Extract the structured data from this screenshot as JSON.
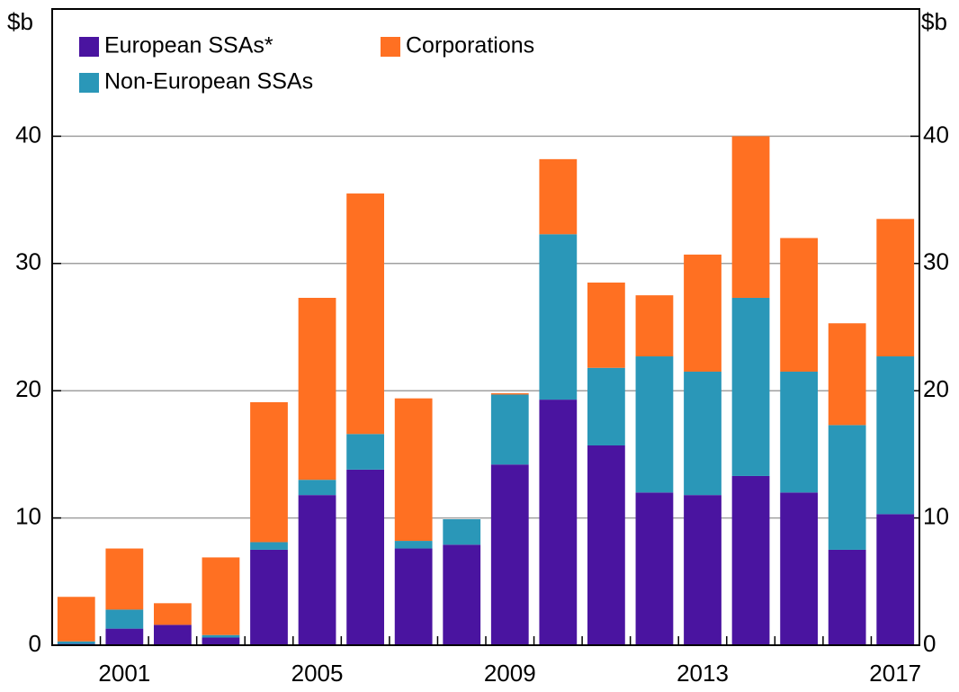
{
  "chart_data": {
    "type": "stacked_bar",
    "y_label": "$b",
    "y2_label": "$b",
    "categories": [
      null,
      "2001",
      null,
      null,
      null,
      "2005",
      null,
      null,
      null,
      "2009",
      null,
      null,
      null,
      "2013",
      null,
      null,
      null,
      "2017"
    ],
    "series": [
      {
        "name": "European SSAs*",
        "color": "#4a14a0",
        "values": [
          0.1,
          1.3,
          1.6,
          0.6,
          7.5,
          11.8,
          13.8,
          7.6,
          7.9,
          14.2,
          19.3,
          15.7,
          12.0,
          11.8,
          13.3,
          12.0,
          7.5,
          10.3
        ]
      },
      {
        "name": "Non-European SSAs",
        "color": "#2a97b8",
        "values": [
          0.2,
          1.5,
          0,
          0.2,
          0.6,
          1.2,
          2.8,
          0.6,
          2.0,
          5.5,
          13.0,
          6.1,
          10.7,
          9.7,
          14.0,
          9.5,
          9.8,
          12.4
        ]
      },
      {
        "name": "Corporations",
        "color": "#ff7022",
        "values": [
          3.5,
          4.8,
          1.7,
          6.1,
          11.0,
          14.3,
          18.9,
          11.2,
          0,
          0.1,
          5.9,
          6.7,
          4.8,
          9.2,
          12.7,
          10.5,
          8.0,
          10.8
        ]
      }
    ],
    "ylim": [
      0,
      50
    ],
    "yticks": [
      0,
      10,
      20,
      30,
      40
    ],
    "grid": true
  }
}
